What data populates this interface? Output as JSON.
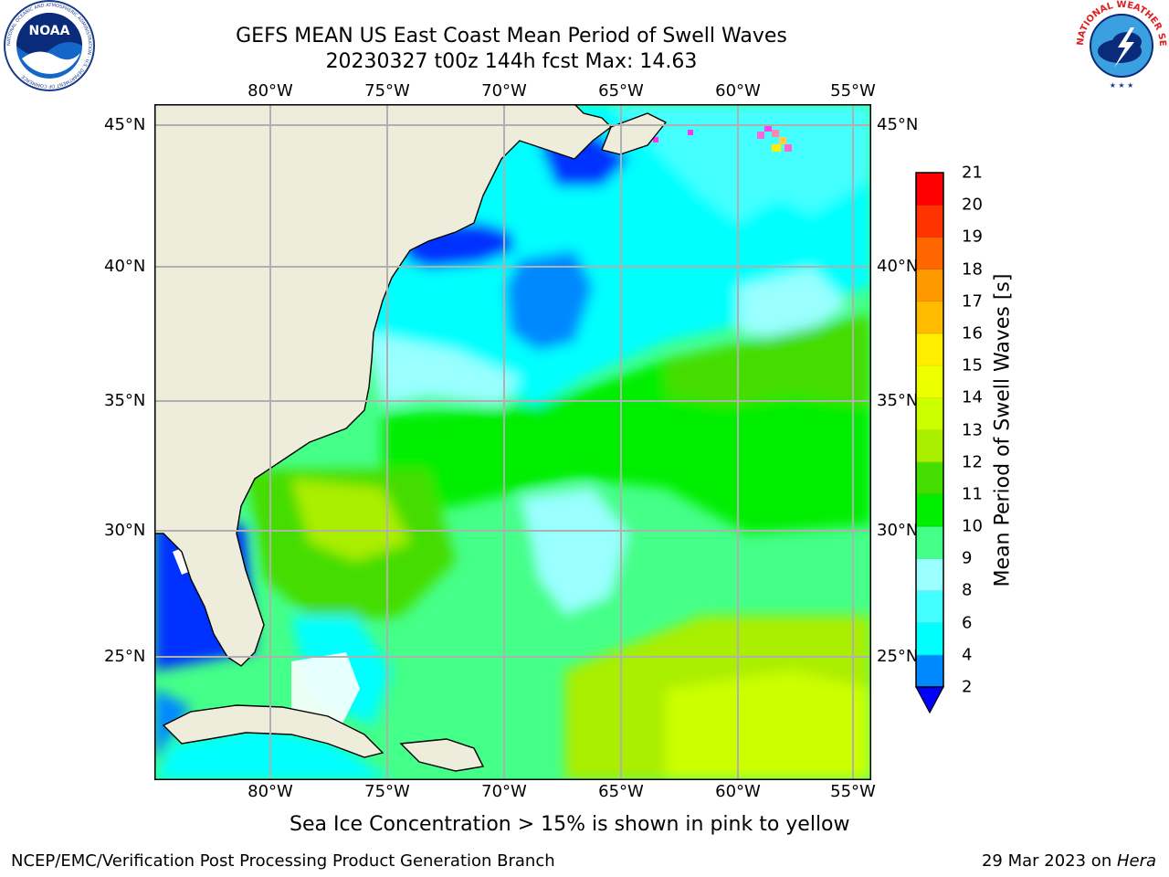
{
  "title": {
    "line1": "GEFS MEAN US East Coast Mean Period of Swell Waves",
    "line2": "20230327 t00z 144h fcst   Max: 14.63"
  },
  "logos": {
    "noaa_text": "NOAA",
    "noaa_ring_text": "NATIONAL OCEANIC AND ATMOSPHERIC ADMINISTRATION · U.S. DEPARTMENT OF COMMERCE",
    "nws_ring_text": "NATIONAL WEATHER SERVICE"
  },
  "map": {
    "lon_labels": [
      "80°W",
      "75°W",
      "70°W",
      "65°W",
      "60°W",
      "55°W"
    ],
    "lat_labels": [
      "45°N",
      "40°N",
      "35°N",
      "30°N",
      "25°N"
    ],
    "colors": {
      "land": "#eeeddc",
      "grid": "#b0b0b0",
      "coast": "#000000"
    }
  },
  "colorbar": {
    "label": "Mean Period of Swell Waves [s]",
    "ticks": [
      "2",
      "4",
      "6",
      "8",
      "9",
      "10",
      "11",
      "12",
      "13",
      "14",
      "15",
      "16",
      "17",
      "18",
      "19",
      "20",
      "21"
    ],
    "colors": [
      "#0033ff",
      "#0088ff",
      "#00ffff",
      "#44ffff",
      "#99ffff",
      "#44ff88",
      "#00ee00",
      "#44dd00",
      "#aaee00",
      "#ccff00",
      "#eeff00",
      "#ffee00",
      "#ffbb00",
      "#ff9900",
      "#ff6600",
      "#ff3300",
      "#ff0000"
    ],
    "extend_color": "#0000ff"
  },
  "ice_note": "Sea Ice Concentration > 15% is shown in pink to yellow",
  "footer": {
    "left": "NCEP/EMC/Verification Post Processing Product Generation Branch",
    "date": "29 Mar 2023 on ",
    "machine": "Hera"
  }
}
